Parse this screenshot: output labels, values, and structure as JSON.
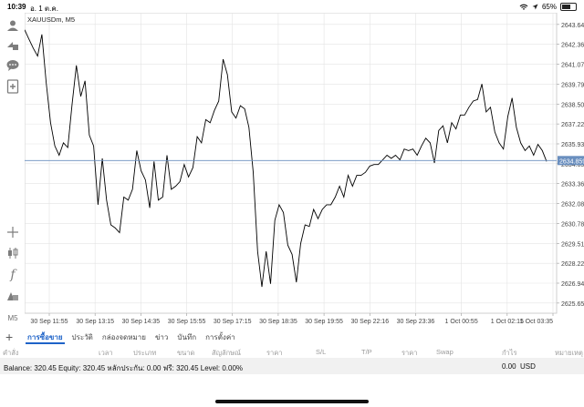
{
  "status": {
    "time": "10:39",
    "date": "อ. 1 ต.ค.",
    "battery": "65%",
    "battery_level": 0.65
  },
  "chart": {
    "symbol_label": "XAUUSDm, M5",
    "current_price": "2634.859",
    "current_price_color": "#6a8fbf",
    "line_color": "#000000",
    "grid_color": "#e3e3e3"
  },
  "chart_data": {
    "type": "line",
    "series": [
      {
        "values": [
          2643.3,
          2642.7,
          2642.1,
          2641.6,
          2643.0,
          2639.9,
          2637.3,
          2635.8,
          2635.2,
          2636.0,
          2635.7,
          2638.5,
          2641.0,
          2639.0,
          2640.0,
          2636.5,
          2635.8,
          2632.0,
          2635.0,
          2632.3,
          2630.7,
          2630.5,
          2630.2,
          2632.5,
          2632.3,
          2633.0,
          2635.5,
          2634.2,
          2633.6,
          2631.8,
          2634.8,
          2632.3,
          2632.5,
          2635.2,
          2633.0,
          2633.2,
          2633.5,
          2634.6,
          2633.8,
          2634.4,
          2636.4,
          2636.0,
          2637.5,
          2637.3,
          2638.1,
          2638.7,
          2641.4,
          2640.4,
          2638.0,
          2637.6,
          2638.4,
          2638.2,
          2637.0,
          2634.1,
          2629.0,
          2626.7,
          2629.0,
          2626.9,
          2631.0,
          2632.0,
          2631.5,
          2629.4,
          2628.8,
          2627.0,
          2629.5,
          2630.7,
          2630.6,
          2631.7,
          2631.1,
          2631.7,
          2632.0,
          2632.0,
          2632.5,
          2633.2,
          2632.5,
          2633.9,
          2633.2,
          2633.9,
          2633.9,
          2634.1,
          2634.5,
          2634.6,
          2634.6,
          2634.9,
          2635.2,
          2635.0,
          2635.2,
          2634.9,
          2635.6,
          2635.5,
          2635.6,
          2635.2,
          2635.8,
          2636.3,
          2636.0,
          2634.7,
          2636.8,
          2637.1,
          2636.0,
          2637.3,
          2636.9,
          2637.8,
          2637.8,
          2638.3,
          2638.7,
          2638.8,
          2639.8,
          2638.0,
          2638.3,
          2636.7,
          2636.0,
          2635.6,
          2637.7,
          2638.9,
          2637.0,
          2636.0,
          2635.5,
          2635.8,
          2635.2,
          2635.9,
          2635.5,
          2634.8
        ]
      }
    ],
    "x_tick_labels": [
      "30 Sep 11:55",
      "30 Sep 13:15",
      "30 Sep 14:35",
      "30 Sep 15:55",
      "30 Sep 17:15",
      "30 Sep 18:35",
      "30 Sep 19:55",
      "30 Sep 22:16",
      "30 Sep 23:36",
      "1 Oct 00:55",
      "1 Oct 02:15",
      "1 Oct 03:35"
    ],
    "y_tick_labels": [
      "2643.645",
      "2642.360",
      "2641.075",
      "2639.790",
      "2638.505",
      "2637.220",
      "2635.935",
      "2634.650",
      "2633.365",
      "2632.080",
      "2630.785",
      "2629.510",
      "2628.225",
      "2626.940",
      "2625.655"
    ],
    "ylim": [
      2625.0,
      2644.4
    ],
    "grid": true
  },
  "toolbar": {
    "icons": [
      "person-icon",
      "share-icon",
      "chat-icon",
      "new-order-icon",
      "crosshair-icon",
      "candles-icon",
      "function-icon",
      "objects-icon",
      "timeframe-icon"
    ],
    "timeframe_label": "M5"
  },
  "terminal": {
    "add_label": "+",
    "tabs": [
      "การซื้อขาย",
      "ประวัติ",
      "กล่องจดหมาย",
      "ข่าว",
      "บันทึก",
      "การตั้งค่า"
    ],
    "columns": [
      "คำสั่ง",
      "เวลา",
      "ประเภท",
      "ขนาด",
      "สัญลักษณ์",
      "ราคา",
      "S/L",
      "T/P",
      "ราคา",
      "Swap",
      "กำไร",
      "หมายเหตุ"
    ],
    "balance_text": "Balance: 320.45 Equity: 320.45 หลักประกัน: 0.00 ฟรี: 320.45 Level: 0.00%",
    "profit_value": "0.00",
    "currency": "USD"
  }
}
